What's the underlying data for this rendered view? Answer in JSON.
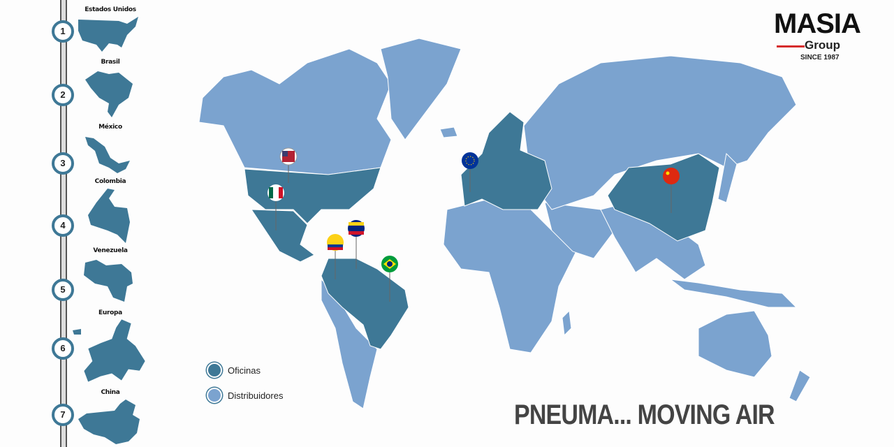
{
  "colors": {
    "offices": "#3e7896",
    "distributors": "#7ba3cf",
    "rail": "#555555",
    "accent": "#d62b2b"
  },
  "logo": {
    "name": "MASIA",
    "sub": "Group",
    "since": "SINCE 1987"
  },
  "countries": [
    {
      "num": "1",
      "name": "Estados Unidos"
    },
    {
      "num": "2",
      "name": "Brasil"
    },
    {
      "num": "3",
      "name": "México"
    },
    {
      "num": "4",
      "name": "Colombia"
    },
    {
      "num": "5",
      "name": "Venezuela"
    },
    {
      "num": "6",
      "name": "Europa"
    },
    {
      "num": "7",
      "name": "China"
    }
  ],
  "legend": {
    "offices": "Oficinas",
    "distributors": "Distribuidores"
  },
  "slogan": "PNEUMA... MOVING AIR",
  "pins": [
    "united-states-flag",
    "mexico-flag",
    "colombia-flag",
    "venezuela-flag",
    "brazil-flag",
    "european-union-flag",
    "china-flag"
  ]
}
